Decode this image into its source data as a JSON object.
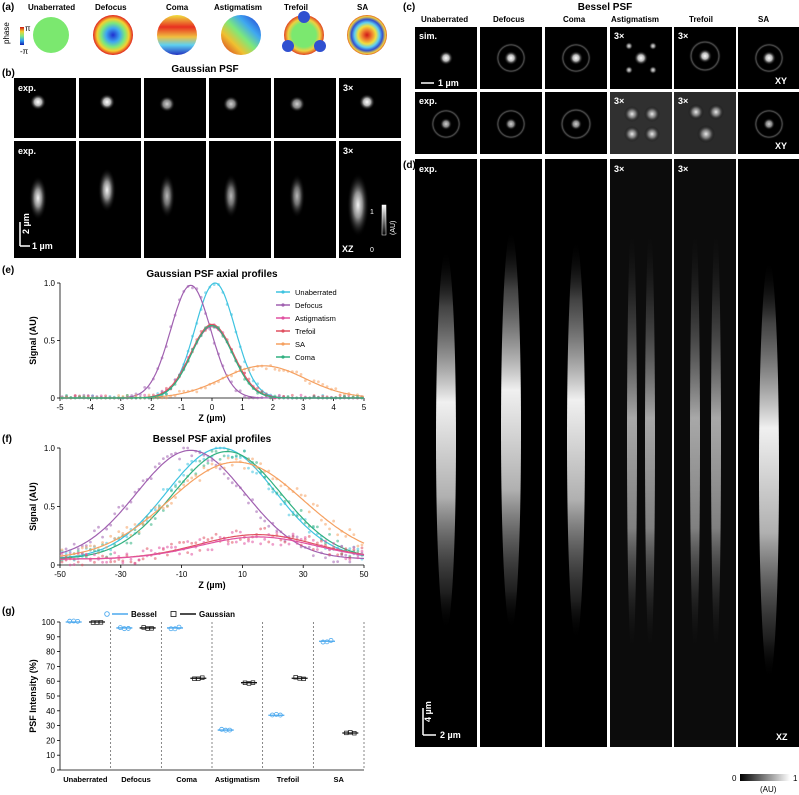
{
  "panel_labels": {
    "a": "(a)",
    "b": "(b)",
    "c": "(c)",
    "d": "(d)",
    "e": "(e)",
    "f": "(f)",
    "g": "(g)"
  },
  "aberrations": [
    "Unaberrated",
    "Defocus",
    "Coma",
    "Astigmatism",
    "Trefoil",
    "SA"
  ],
  "phase_colorbar": {
    "label": "phase",
    "max": "π",
    "min": "-π"
  },
  "gaussian_title": "Gaussian PSF",
  "bessel_title": "Bessel PSF",
  "tag_exp": "exp.",
  "tag_sim": "sim.",
  "tag_3x": "3×",
  "tag_xy": "XY",
  "tag_xz": "XZ",
  "b_scale_v": "2 µm",
  "b_scale_h": "1 µm",
  "c_scale": "1 µm",
  "d_scale_v": "4 µm",
  "d_scale_h": "2 µm",
  "intensity_bar": {
    "min": "0",
    "max": "1",
    "unit": "(AU)"
  },
  "magnified_3x": {
    "b_xy": [
      "SA"
    ],
    "b_xz": [
      "SA"
    ],
    "c_sim": [
      "Astigmatism",
      "Trefoil"
    ],
    "c_exp": [
      "Astigmatism",
      "Trefoil"
    ],
    "d": [
      "Astigmatism",
      "Trefoil"
    ]
  },
  "colors": {
    "Unaberrated": "#3ec3e0",
    "Defocus": "#a060b0",
    "Astigmatism": "#e050a0",
    "Trefoil": "#e05060",
    "SA": "#f5a060",
    "Coma": "#30b080",
    "Bessel": "#4aa8ee",
    "Gaussian": "#111111"
  },
  "chart_data": [
    {
      "id": "e",
      "type": "line",
      "title": "Gaussian PSF axial profiles",
      "xlabel": "Z (µm)",
      "ylabel": "Signal (AU)",
      "xlim": [
        -5,
        5
      ],
      "ylim": [
        0,
        1.0
      ],
      "xticks": [
        -5,
        -4,
        -3,
        -2,
        -1,
        0,
        1,
        2,
        3,
        4,
        5
      ],
      "yticks": [
        0,
        0.5,
        1.0
      ],
      "ytick_labels": [
        "0",
        "0.5",
        "1.0"
      ],
      "legend_position": "right",
      "series": [
        {
          "name": "Unaberrated",
          "peak": 1.0,
          "center": 0.1,
          "fwhm": 1.55
        },
        {
          "name": "Defocus",
          "peak": 0.98,
          "center": -0.7,
          "fwhm": 1.55
        },
        {
          "name": "Astigmatism",
          "peak": 0.62,
          "center": 0.0,
          "fwhm": 1.65
        },
        {
          "name": "Trefoil",
          "peak": 0.64,
          "center": 0.0,
          "fwhm": 1.65
        },
        {
          "name": "SA",
          "peak": 0.28,
          "center": 1.7,
          "fwhm": 3.2
        },
        {
          "name": "Coma",
          "peak": 0.63,
          "center": 0.0,
          "fwhm": 1.6
        }
      ]
    },
    {
      "id": "f",
      "type": "line",
      "title": "Bessel PSF axial profiles",
      "xlabel": "Z (µm)",
      "ylabel": "Signal (AU)",
      "xlim": [
        -50,
        50
      ],
      "ylim": [
        0,
        1.0
      ],
      "xticks": [
        -50,
        -30,
        -10,
        10,
        30,
        50
      ],
      "yticks": [
        0,
        0.5,
        1.0
      ],
      "ytick_labels": [
        "0",
        "0.5",
        "1.0"
      ],
      "baseline": 0.05,
      "series": [
        {
          "name": "Unaberrated",
          "peak": 1.0,
          "center": 3,
          "fwhm": 42
        },
        {
          "name": "Defocus",
          "peak": 0.98,
          "center": -7,
          "fwhm": 42
        },
        {
          "name": "Coma",
          "peak": 0.97,
          "center": 5,
          "fwhm": 42
        },
        {
          "name": "SA",
          "peak": 0.88,
          "center": 8,
          "fwhm": 52
        },
        {
          "name": "Trefoil",
          "peak": 0.26,
          "center": 15,
          "fwhm": 45
        },
        {
          "name": "Astigmatism",
          "peak": 0.24,
          "center": 15,
          "fwhm": 45
        }
      ]
    },
    {
      "id": "g",
      "type": "scatter",
      "ylabel": "PSF Intensity (%)",
      "ylim": [
        0,
        100
      ],
      "yticks": [
        0,
        10,
        20,
        30,
        40,
        50,
        60,
        70,
        80,
        90,
        100
      ],
      "categories": [
        "Unaberrated",
        "Defocus",
        "Coma",
        "Astigmatism",
        "Trefoil",
        "SA"
      ],
      "legend": [
        "Bessel",
        "Gaussian"
      ],
      "series": [
        {
          "name": "Bessel",
          "values": [
            100,
            96,
            96,
            27,
            37,
            87
          ]
        },
        {
          "name": "Gaussian",
          "values": [
            100,
            96,
            62,
            59,
            62,
            25
          ]
        }
      ]
    }
  ]
}
